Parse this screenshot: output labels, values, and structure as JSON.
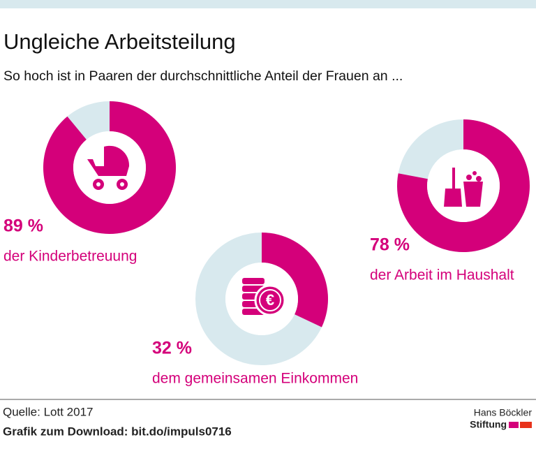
{
  "title": "Ungleiche Arbeitsteilung",
  "subtitle": "So hoch ist in Paaren der durchschnittliche Anteil der Frauen an ...",
  "chart_data": [
    {
      "type": "donut",
      "values": [
        89
      ],
      "value_labels": [
        "89 %"
      ],
      "label": "der Kinderbetreuung",
      "color": "#d4007a",
      "rest_color": "#d8e9ee"
    },
    {
      "type": "donut",
      "values": [
        32
      ],
      "value_labels": [
        "32 %"
      ],
      "label": "dem gemeinsamen Einkommen",
      "color": "#d4007a",
      "rest_color": "#d8e9ee"
    },
    {
      "type": "donut",
      "values": [
        78
      ],
      "value_labels": [
        "78 %"
      ],
      "label": "der Arbeit im Haushalt",
      "color": "#d4007a",
      "rest_color": "#d8e9ee"
    }
  ],
  "footer": {
    "source": "Quelle: Lott 2017",
    "download": "Grafik zum Download: bit.do/impuls0716",
    "logo": [
      "Hans Böckler",
      "Stiftung"
    ]
  }
}
